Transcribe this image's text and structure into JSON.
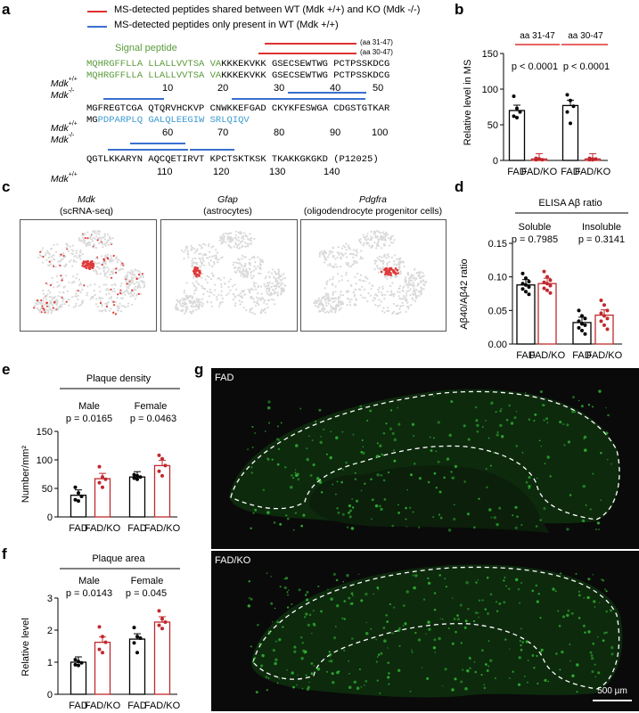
{
  "panel_letters": [
    "a",
    "b",
    "c",
    "d",
    "e",
    "f",
    "g"
  ],
  "colors": {
    "shared": "#e03030",
    "wt_only": "#3a6fd0",
    "signal": "#5a9a3a",
    "ko_blue": "#3a9ad0",
    "fad": "#000000",
    "fadko": "#c0282d",
    "tissue_bg": "#0a0a0a",
    "cell_green": "#2fb02f",
    "tsne_gray": "#d9d9d9",
    "tsne_red": "#e03a3a"
  },
  "panel_a": {
    "legend_red": "MS-detected peptides shared  between WT (Mdk +/+) and KO (Mdk -/-)",
    "legend_blue": "MS-detected peptides only present in WT (Mdk +/+)",
    "signal_label": "Signal peptide",
    "aa_label_1": "(aa 31-47)",
    "aa_label_2": "(aa 30-47)",
    "geno_wt": "Mdk",
    "geno_wt_sup": "+/+",
    "geno_ko": "Mdk",
    "geno_ko_sup": "-/-",
    "block1_wt_sig": "MQHRGFFLLA LLALLVVTSA VA",
    "block1_wt_rest": "KKKEKVKK GSECSEWTWG PCTPSSKDCG",
    "block1_ko_sig": "MQHRGFFLLA LLALLVVTSA VA",
    "block1_ko_rest": "KKKEKVKK GSECSEWTWG PCTPSSKDCG",
    "block1_nums": [
      "10",
      "20",
      "30",
      "40",
      "50"
    ],
    "block2_wt": "MGFREGTCGA QTQRVHCKVP CNWKKEFGAD CKYKFESWGA CDGSTGTKAR",
    "block2_ko_pre": "MG",
    "block2_ko_blue": "PDPARPLQ GALQLEEGIW SRLQIQV",
    "block2_nums": [
      "60",
      "70",
      "80",
      "90",
      "100"
    ],
    "block3_wt": "QGTLKKARYN AQCQETIRVT KPCTSKTKSK TKAKKGKGKD (P12025)",
    "block3_nums": [
      "110",
      "120",
      "130",
      "140"
    ]
  },
  "panel_c": {
    "titles": [
      {
        "name": "Mdk",
        "sub": "(scRNA-seq)"
      },
      {
        "name": "Gfap",
        "sub": "(astrocytes)"
      },
      {
        "name": "Pdgfra",
        "sub": "(oligodendrocyte progenitor cells)"
      }
    ]
  },
  "panel_g": {
    "label_top": "FAD",
    "label_bottom": "FAD/KO",
    "scale_bar": "500 µm"
  },
  "chart_data": [
    {
      "panel": "b",
      "type": "bar",
      "ylabel": "Relative level in MS",
      "ylim": [
        0,
        150
      ],
      "yticks": [
        "0",
        "50",
        "100",
        "150"
      ],
      "categories": [
        "FAD",
        "FAD/KO",
        "FAD",
        "FAD/KO"
      ],
      "values": [
        70,
        2,
        77,
        2
      ],
      "group_labels": [
        "aa 31-47",
        "aa 30-47"
      ],
      "pvalues": [
        "p < 0.0001",
        "p < 0.0001"
      ],
      "points": [
        [
          90,
          73,
          68,
          62,
          60
        ],
        [
          1,
          2,
          1,
          3,
          2
        ],
        [
          92,
          84,
          76,
          68,
          52
        ],
        [
          1,
          2,
          2,
          3,
          1
        ]
      ]
    },
    {
      "panel": "d",
      "type": "bar",
      "title": "ELISA Aβ ratio",
      "ylabel": "Aβ40/Aβ42 ratio",
      "ylim": [
        0,
        0.15
      ],
      "yticks": [
        "0.00",
        "0.05",
        "0.10",
        "0.15"
      ],
      "categories": [
        "FAD",
        "FAD/KO",
        "FAD",
        "FAD/KO"
      ],
      "values": [
        0.088,
        0.09,
        0.032,
        0.043
      ],
      "group_labels": [
        "Soluble",
        "Insoluble"
      ],
      "pvalues": [
        "p = 0.7985",
        "p = 0.3141"
      ],
      "points": [
        [
          0.105,
          0.098,
          0.093,
          0.09,
          0.088,
          0.085,
          0.082,
          0.078,
          0.074
        ],
        [
          0.108,
          0.1,
          0.095,
          0.092,
          0.09,
          0.087,
          0.083,
          0.08,
          0.076
        ],
        [
          0.05,
          0.042,
          0.038,
          0.034,
          0.03,
          0.028,
          0.024,
          0.02,
          0.015
        ],
        [
          0.065,
          0.058,
          0.05,
          0.046,
          0.042,
          0.038,
          0.034,
          0.028,
          0.022
        ]
      ]
    },
    {
      "panel": "e",
      "type": "bar",
      "title": "Plaque density",
      "ylabel": "Number/mm²",
      "ylim": [
        0,
        150
      ],
      "yticks": [
        "0",
        "50",
        "100",
        "150"
      ],
      "categories": [
        "FAD",
        "FAD/KO",
        "FAD",
        "FAD/KO"
      ],
      "values": [
        38,
        67,
        70,
        90
      ],
      "group_labels": [
        "Male",
        "Female"
      ],
      "pvalues": [
        "p = 0.0165",
        "p = 0.0463"
      ],
      "points": [
        [
          52,
          42,
          36,
          30,
          28
        ],
        [
          88,
          70,
          66,
          60,
          52
        ],
        [
          74,
          72,
          70,
          68,
          66
        ],
        [
          108,
          102,
          90,
          80,
          72
        ]
      ]
    },
    {
      "panel": "f",
      "type": "bar",
      "title": "Plaque area",
      "ylabel": "Relative level",
      "ylim": [
        0,
        3
      ],
      "yticks": [
        "0",
        "1",
        "2",
        "3"
      ],
      "categories": [
        "FAD",
        "FAD/KO",
        "FAD",
        "FAD/KO"
      ],
      "values": [
        1.0,
        1.62,
        1.72,
        2.25
      ],
      "group_labels": [
        "Male",
        "Female"
      ],
      "pvalues": [
        "p = 0.0143",
        "p = 0.045"
      ],
      "points": [
        [
          1.08,
          1.02,
          0.98,
          0.92,
          0.9
        ],
        [
          2.1,
          1.8,
          1.62,
          1.4,
          1.3
        ],
        [
          2.08,
          1.8,
          1.75,
          1.6,
          1.3
        ],
        [
          2.6,
          2.35,
          2.25,
          2.15,
          2.05
        ]
      ]
    }
  ]
}
